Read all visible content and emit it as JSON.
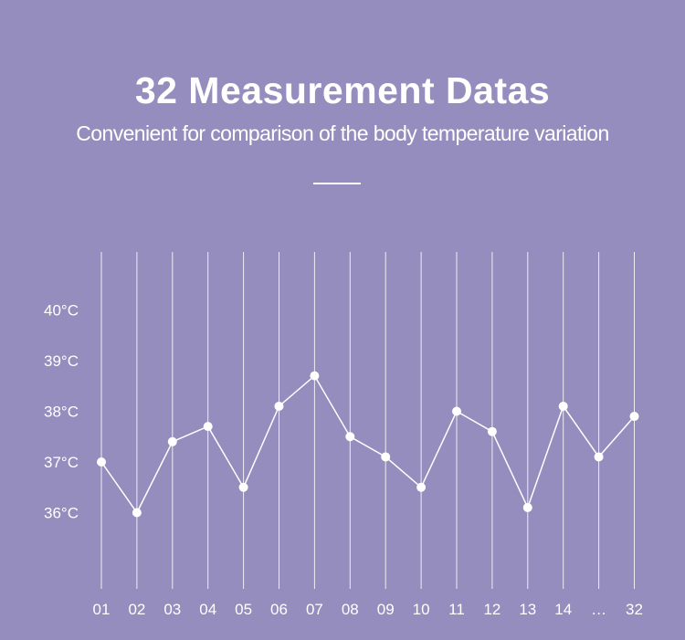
{
  "header": {
    "title": "32 Measurement Datas",
    "subtitle": "Convenient for comparison of the body temperature variation"
  },
  "chart_data": {
    "type": "line",
    "title": "32 Measurement Datas",
    "subtitle": "Convenient for comparison of the body temperature variation",
    "categories": [
      "01",
      "02",
      "03",
      "04",
      "05",
      "06",
      "07",
      "08",
      "09",
      "10",
      "11",
      "12",
      "13",
      "14",
      "…",
      "32"
    ],
    "y_tick_labels": [
      "40°C",
      "39°C",
      "38°C",
      "37°C",
      "36°C"
    ],
    "y_ticks": [
      40,
      39,
      38,
      37,
      36
    ],
    "series": [
      {
        "values": [
          37.0,
          36.0,
          37.4,
          37.7,
          36.5,
          38.1,
          38.7,
          37.5,
          37.1,
          36.5,
          38.0,
          37.6,
          36.1,
          38.1,
          37.1,
          37.9
        ]
      }
    ],
    "ylim": [
      36,
      40
    ],
    "grid": true,
    "colors": {
      "background": "#948dbd",
      "line": "#ffffff",
      "grid": "#ffffff"
    }
  }
}
